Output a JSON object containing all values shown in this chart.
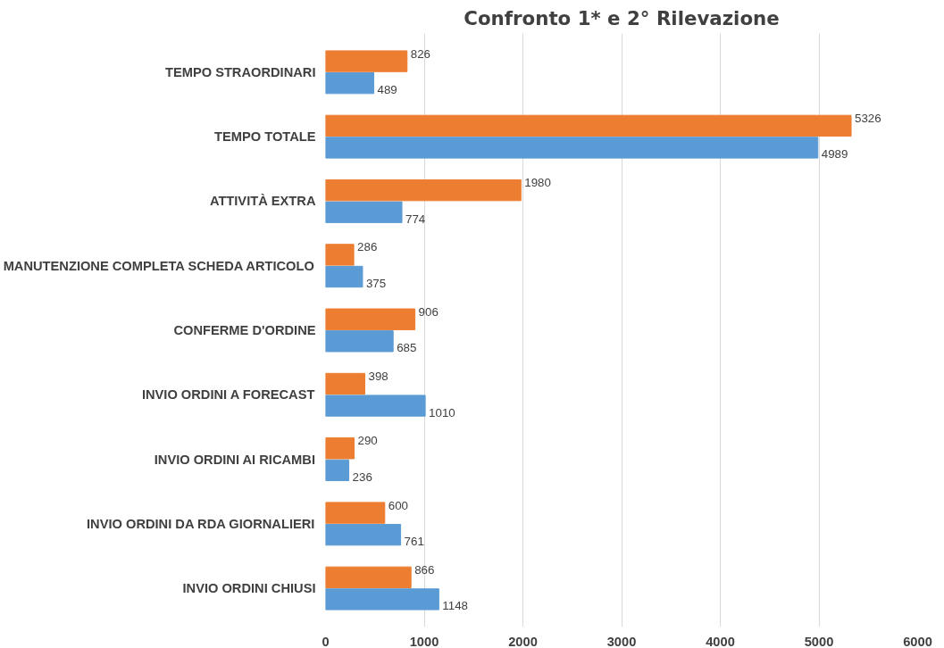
{
  "chart_data": {
    "type": "bar",
    "orientation": "horizontal",
    "title": "Confronto 1* e 2° Rilevazione",
    "categories": [
      "TEMPO STRAORDINARI",
      "TEMPO TOTALE",
      "ATTIVITÀ EXTRA",
      "MANUTENZIONE COMPLETA SCHEDA ARTICOLO",
      "CONFERME D'ORDINE",
      "INVIO ORDINI A FORECAST",
      "INVIO ORDINI AI RICAMBI",
      "INVIO ORDINI DA RDA GIORNALIERI",
      "INVIO ORDINI CHIUSI"
    ],
    "series": [
      {
        "color": "#5b9bd5",
        "values": [
          489,
          4989,
          774,
          375,
          685,
          1010,
          236,
          761,
          1148
        ]
      },
      {
        "color": "#ed7d31",
        "values": [
          826,
          5326,
          1980,
          286,
          906,
          398,
          290,
          600,
          866
        ]
      }
    ],
    "xlim": [
      0,
      6000
    ],
    "xticks": [
      0,
      1000,
      2000,
      3000,
      4000,
      5000,
      6000
    ],
    "grid": "x",
    "data_labels": true
  }
}
